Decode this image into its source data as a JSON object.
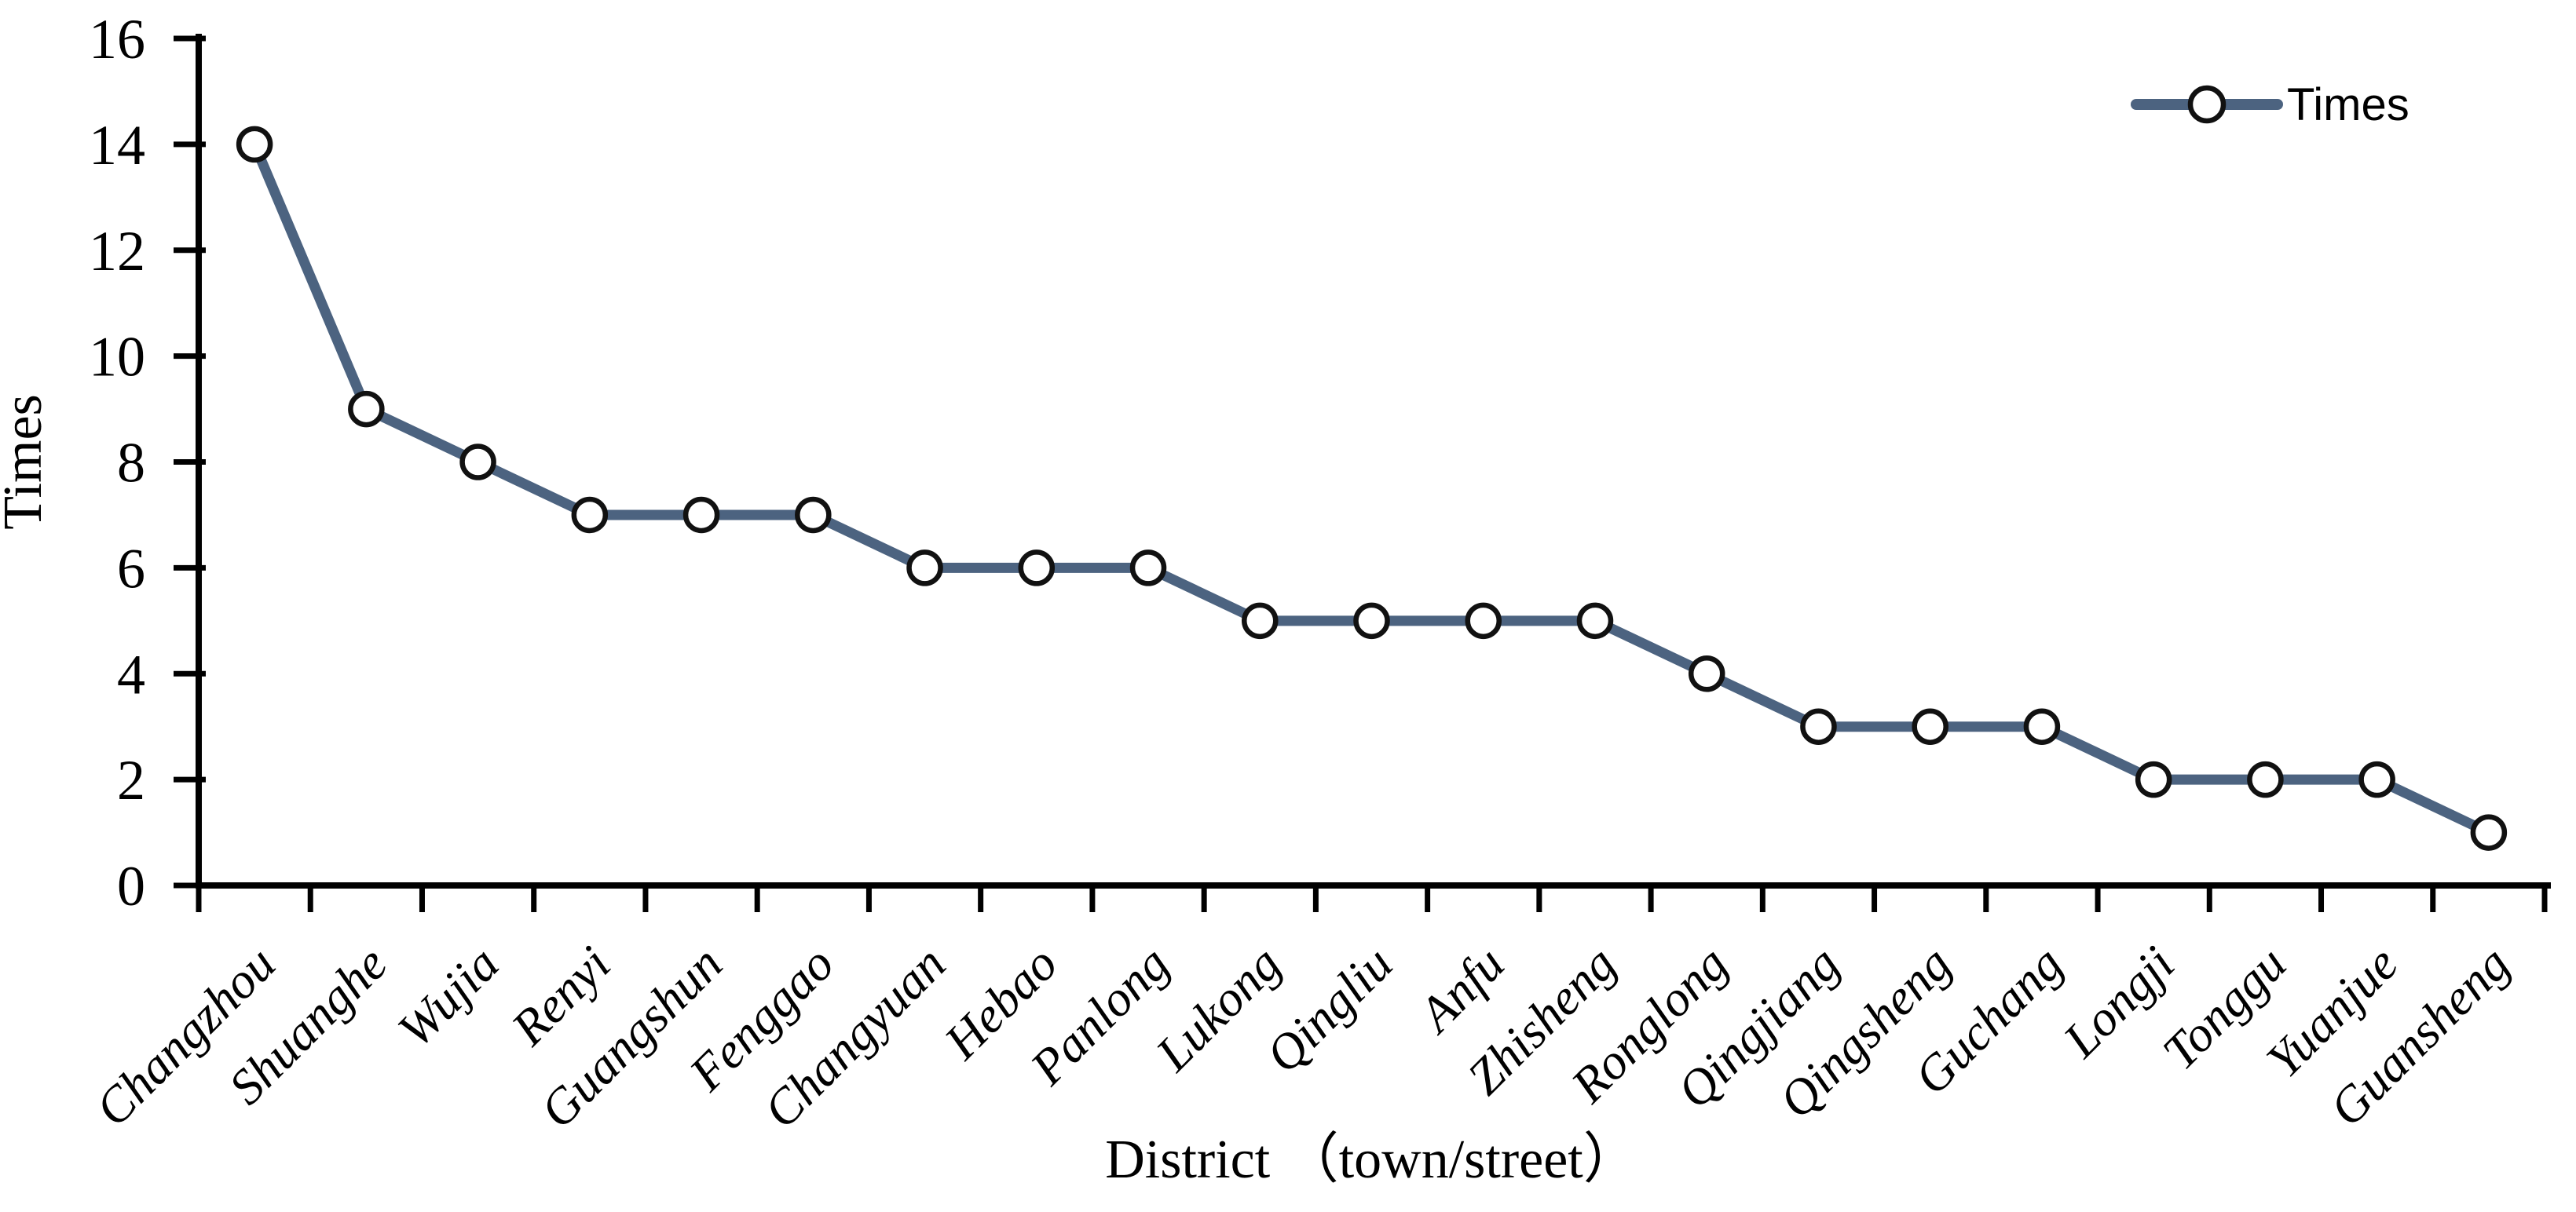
{
  "chart_data": {
    "type": "line",
    "title": "",
    "categories": [
      "Changzhou",
      "Shuanghe",
      "Wujia",
      "Renyi",
      "Guangshun",
      "Fenggao",
      "Changyuan",
      "Hebao",
      "Panlong",
      "Lukong",
      "Qingliu",
      "Anfu",
      "Zhisheng",
      "Ronglong",
      "Qingjiang",
      "Qingsheng",
      "Guchang",
      "Longji",
      "Tonggu",
      "Yuanjue",
      "Guansheng"
    ],
    "series": [
      {
        "name": "Times",
        "values": [
          14,
          9,
          8,
          7,
          7,
          7,
          6,
          6,
          6,
          5,
          5,
          5,
          5,
          4,
          3,
          3,
          3,
          2,
          2,
          2,
          1
        ]
      }
    ],
    "xlabel": "District （town/street）",
    "ylabel": "Times",
    "ylim": [
      0,
      16
    ],
    "yticks": [
      0,
      2,
      4,
      6,
      8,
      10,
      12,
      14,
      16
    ],
    "grid": false,
    "legend": {
      "position": "top-right",
      "entries": [
        "Times"
      ]
    },
    "colors": {
      "line": "#4c6380",
      "marker_fill": "#ffffff",
      "marker_stroke": "#111111",
      "axis": "#000000",
      "text": "#000000"
    }
  }
}
